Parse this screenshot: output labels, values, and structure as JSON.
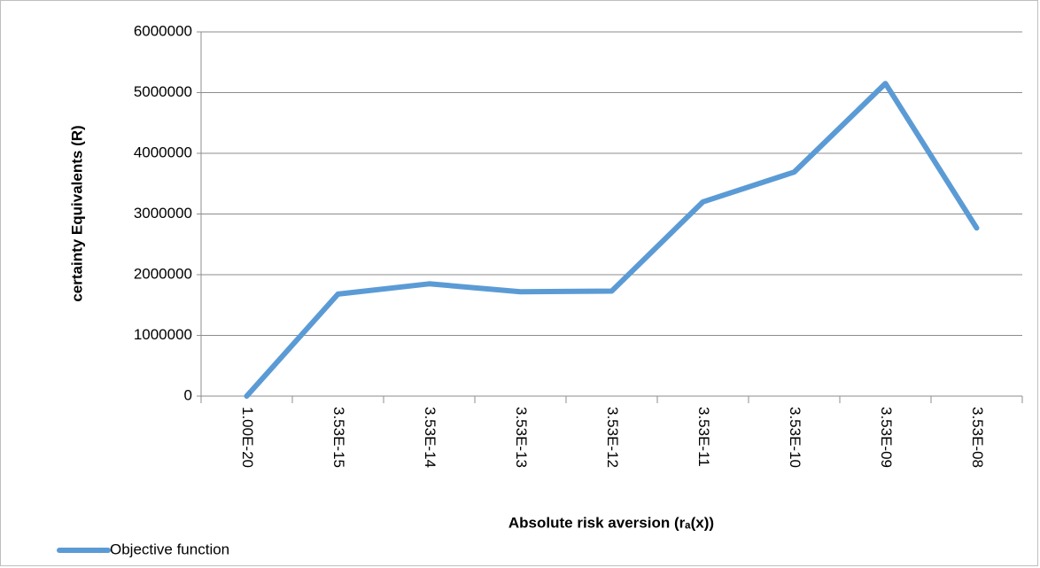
{
  "chart_data": {
    "type": "line",
    "x_label": "Absolute risk aversion (rₐ(x))",
    "y_label": "certainty Equivalents (R)",
    "categories": [
      "1.00E-20",
      "3.53E-15",
      "3.53E-14",
      "3.53E-13",
      "3.53E-12",
      "3.53E-11",
      "3.53E-10",
      "3.53E-09",
      "3.53E-08"
    ],
    "series": [
      {
        "name": "Objective function",
        "color": "#5b9bd5",
        "values": [
          0,
          1680000,
          1850000,
          1720000,
          1730000,
          3200000,
          3690000,
          5150000,
          2770000
        ]
      }
    ],
    "ylim": [
      0,
      6000000
    ],
    "yticks": [
      0,
      1000000,
      2000000,
      3000000,
      4000000,
      5000000,
      6000000
    ],
    "grid": true,
    "legend": "bottom-left"
  }
}
